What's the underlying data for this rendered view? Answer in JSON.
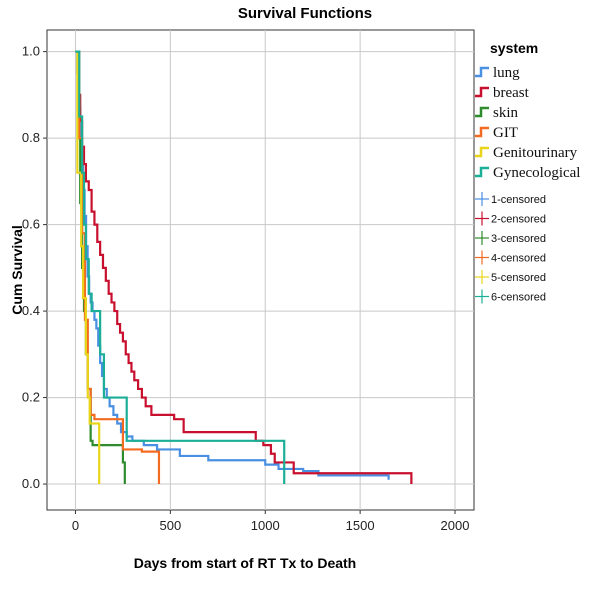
{
  "chart_data": {
    "type": "line",
    "title": "Survival Functions",
    "xlabel": "Days from start of RT Tx to Death",
    "ylabel": "Cum Survival",
    "xlim": [
      -150,
      2100
    ],
    "ylim": [
      -0.06,
      1.05
    ],
    "x_ticks": [
      0,
      500,
      1000,
      1500,
      2000
    ],
    "x_tick_labels": [
      "0",
      "500",
      "1000",
      "1500",
      "2000"
    ],
    "y_ticks": [
      0.0,
      0.2,
      0.4,
      0.6,
      0.8,
      1.0
    ],
    "y_tick_labels": [
      "0.0",
      "0.2",
      "0.4",
      "0.6",
      "0.8",
      "1.0"
    ],
    "grid": true,
    "legend_placement": "right",
    "legend_title": "system",
    "series": [
      {
        "name": "lung",
        "color": "#4a90e2",
        "points": [
          [
            0,
            1.0
          ],
          [
            10,
            0.95
          ],
          [
            18,
            0.87
          ],
          [
            25,
            0.8
          ],
          [
            32,
            0.74
          ],
          [
            40,
            0.68
          ],
          [
            48,
            0.62
          ],
          [
            56,
            0.55
          ],
          [
            64,
            0.48
          ],
          [
            72,
            0.44
          ],
          [
            80,
            0.42
          ],
          [
            90,
            0.4
          ],
          [
            100,
            0.38
          ],
          [
            110,
            0.36
          ],
          [
            120,
            0.32
          ],
          [
            130,
            0.28
          ],
          [
            140,
            0.25
          ],
          [
            150,
            0.22
          ],
          [
            165,
            0.2
          ],
          [
            180,
            0.18
          ],
          [
            200,
            0.16
          ],
          [
            220,
            0.14
          ],
          [
            240,
            0.12
          ],
          [
            270,
            0.11
          ],
          [
            300,
            0.1
          ],
          [
            360,
            0.09
          ],
          [
            430,
            0.08
          ],
          [
            550,
            0.065
          ],
          [
            700,
            0.055
          ],
          [
            1000,
            0.045
          ],
          [
            1070,
            0.035
          ],
          [
            1200,
            0.03
          ],
          [
            1280,
            0.02
          ],
          [
            1650,
            0.01
          ]
        ]
      },
      {
        "name": "breast",
        "color": "#c8102e",
        "points": [
          [
            0,
            1.0
          ],
          [
            15,
            0.9
          ],
          [
            25,
            0.84
          ],
          [
            35,
            0.78
          ],
          [
            45,
            0.74
          ],
          [
            55,
            0.7
          ],
          [
            70,
            0.68
          ],
          [
            85,
            0.63
          ],
          [
            100,
            0.6
          ],
          [
            115,
            0.56
          ],
          [
            130,
            0.53
          ],
          [
            145,
            0.5
          ],
          [
            160,
            0.47
          ],
          [
            175,
            0.44
          ],
          [
            190,
            0.42
          ],
          [
            205,
            0.4
          ],
          [
            220,
            0.37
          ],
          [
            235,
            0.35
          ],
          [
            250,
            0.33
          ],
          [
            265,
            0.3
          ],
          [
            280,
            0.28
          ],
          [
            295,
            0.26
          ],
          [
            310,
            0.24
          ],
          [
            330,
            0.22
          ],
          [
            350,
            0.2
          ],
          [
            370,
            0.18
          ],
          [
            400,
            0.16
          ],
          [
            520,
            0.15
          ],
          [
            570,
            0.12
          ],
          [
            950,
            0.1
          ],
          [
            990,
            0.09
          ],
          [
            1030,
            0.07
          ],
          [
            1050,
            0.05
          ],
          [
            1150,
            0.025
          ],
          [
            1770,
            0.0
          ]
        ]
      },
      {
        "name": "skin",
        "color": "#2e8b2e",
        "points": [
          [
            0,
            1.0
          ],
          [
            15,
            0.8
          ],
          [
            25,
            0.65
          ],
          [
            35,
            0.5
          ],
          [
            45,
            0.4
          ],
          [
            55,
            0.3
          ],
          [
            65,
            0.22
          ],
          [
            80,
            0.1
          ],
          [
            90,
            0.09
          ],
          [
            250,
            0.05
          ],
          [
            260,
            0.0
          ]
        ]
      },
      {
        "name": "GIT",
        "color": "#f26b21",
        "points": [
          [
            0,
            1.0
          ],
          [
            20,
            0.8
          ],
          [
            35,
            0.58
          ],
          [
            50,
            0.38
          ],
          [
            65,
            0.22
          ],
          [
            80,
            0.16
          ],
          [
            100,
            0.15
          ],
          [
            250,
            0.08
          ],
          [
            350,
            0.075
          ],
          [
            440,
            0.0
          ]
        ]
      },
      {
        "name": "Genitourinary",
        "color": "#e8d51a",
        "points": [
          [
            0,
            1.0
          ],
          [
            10,
            0.72
          ],
          [
            30,
            0.55
          ],
          [
            40,
            0.43
          ],
          [
            55,
            0.3
          ],
          [
            65,
            0.2
          ],
          [
            75,
            0.14
          ],
          [
            125,
            0.0
          ]
        ]
      },
      {
        "name": "Gynecological",
        "color": "#1aaf96",
        "points": [
          [
            0,
            1.0
          ],
          [
            20,
            0.85
          ],
          [
            35,
            0.72
          ],
          [
            45,
            0.6
          ],
          [
            55,
            0.52
          ],
          [
            70,
            0.44
          ],
          [
            85,
            0.4
          ],
          [
            130,
            0.3
          ],
          [
            150,
            0.2
          ],
          [
            270,
            0.1
          ],
          [
            1100,
            0.0
          ]
        ]
      }
    ],
    "censored_legend": [
      {
        "label": "1-censored",
        "color": "#4a90e2"
      },
      {
        "label": "2-censored",
        "color": "#c8102e"
      },
      {
        "label": "3-censored",
        "color": "#2e8b2e"
      },
      {
        "label": "4-censored",
        "color": "#f26b21"
      },
      {
        "label": "5-censored",
        "color": "#e8d51a"
      },
      {
        "label": "6-censored",
        "color": "#1aaf96"
      }
    ]
  }
}
